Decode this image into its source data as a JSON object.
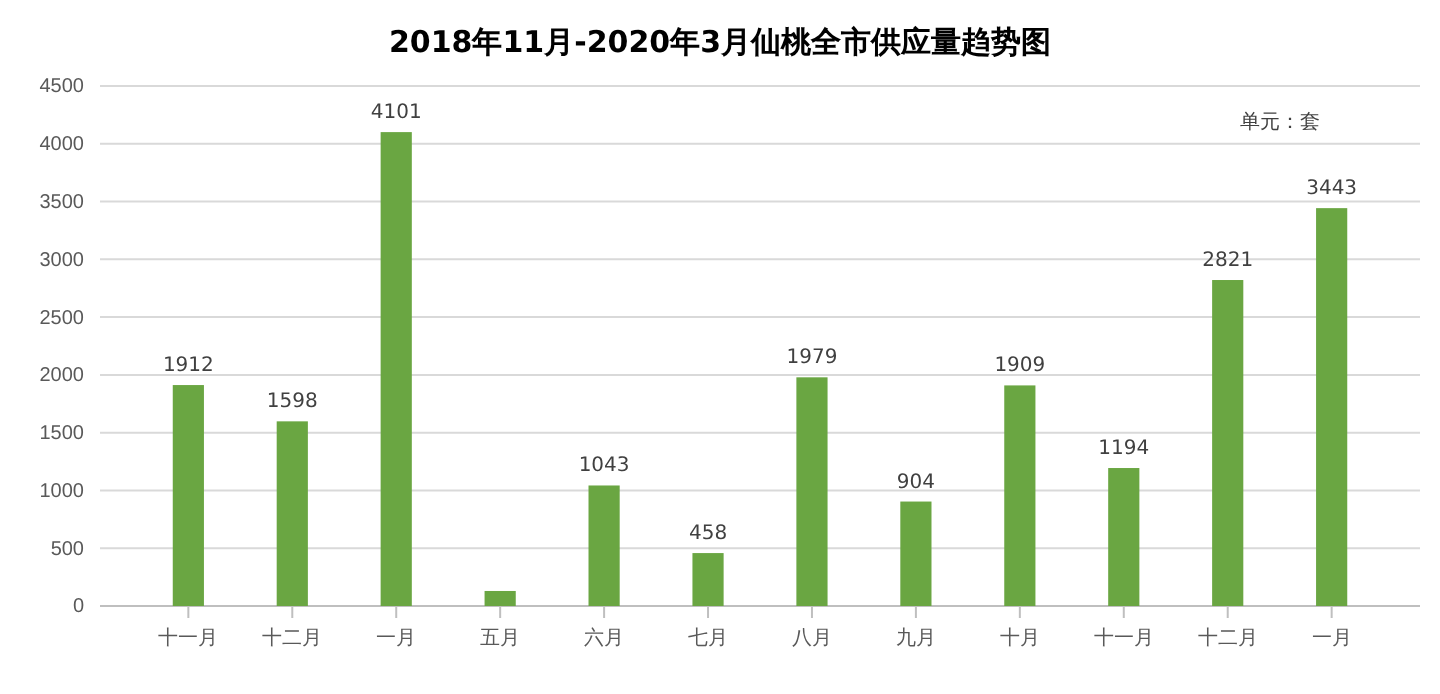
{
  "chart_data": {
    "type": "bar",
    "title": "2018年11月-2020年3月仙桃全市供应量趋势图",
    "categories": [
      "十一月",
      "十二月",
      "一月",
      "五月",
      "六月",
      "七月",
      "八月",
      "九月",
      "十月",
      "十一月",
      "十二月",
      "一月"
    ],
    "values": [
      1912,
      1598,
      4101,
      130,
      1043,
      458,
      1979,
      904,
      1909,
      1194,
      2821,
      3443
    ],
    "value_labels": [
      "1912",
      "1598",
      "4101",
      null,
      "1043",
      "458",
      "1979",
      "904",
      "1909",
      "1194",
      "2821",
      "3443"
    ],
    "color": "#6aa642",
    "ylim": [
      0,
      4500
    ],
    "yticks": [
      0,
      500,
      1000,
      1500,
      2000,
      2500,
      3000,
      3500,
      4000,
      4500
    ],
    "grid": "y",
    "annotations": [
      "单元：套"
    ]
  }
}
